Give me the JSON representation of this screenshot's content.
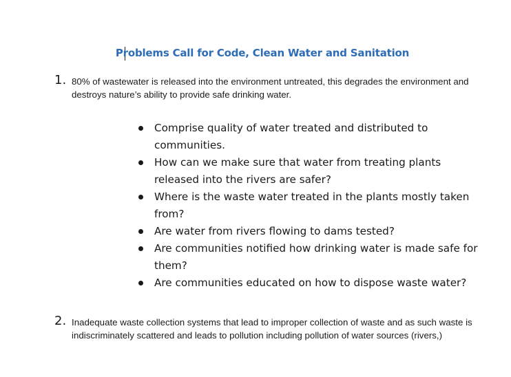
{
  "document": {
    "title": "Problems Call for Code, Clean Water and Sanitation",
    "items": [
      {
        "number": "1.",
        "text": "80% of wastewater is released into the environment untreated, this degrades the environment and destroys nature’s ability to provide safe drinking water."
      },
      {
        "number": "2.",
        "text": "Inadequate waste collection systems that lead to improper collection of waste and as such waste is indiscriminately scattered and leads to pollution including pollution of water sources (rivers,)"
      }
    ],
    "bullets": [
      "Comprise quality of water treated and distributed to communities.",
      "How can we make sure that water from treating plants released into the rivers are safer?",
      "Where is the waste water treated in the plants mostly taken from?",
      "Are water from rivers flowing to dams tested?",
      "Are communities notified how drinking water is made safe for them?",
      "Are communities educated on how to dispose waste water?"
    ]
  }
}
